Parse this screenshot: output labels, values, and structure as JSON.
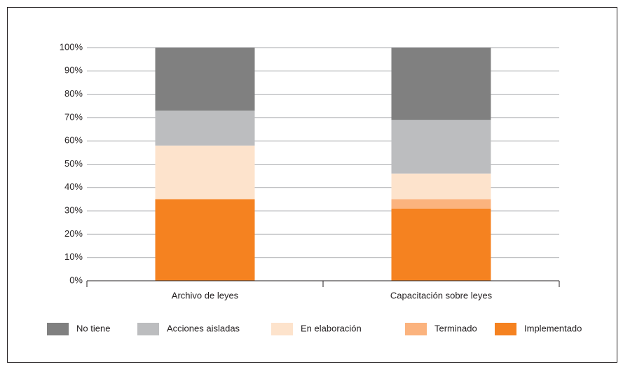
{
  "chart_data": {
    "type": "stacked-bar",
    "categories": [
      "Archivo de leyes",
      "Capacitación sobre leyes"
    ],
    "series": [
      {
        "name": "No tiene",
        "color": "#808080",
        "values": [
          27,
          31
        ]
      },
      {
        "name": "Acciones aisladas",
        "color": "#bcbdbf",
        "values": [
          15,
          23
        ]
      },
      {
        "name": "En elaboración",
        "color": "#fde3cc",
        "values": [
          23,
          11
        ]
      },
      {
        "name": "Terminado",
        "color": "#fbb37e",
        "values": [
          0,
          4
        ]
      },
      {
        "name": "Implementado",
        "color": "#f58220",
        "values": [
          35,
          31
        ]
      }
    ],
    "ylim": [
      0,
      100
    ],
    "yticks": [
      {
        "value": 0,
        "label": "0%"
      },
      {
        "value": 10,
        "label": "10%"
      },
      {
        "value": 20,
        "label": "20%"
      },
      {
        "value": 30,
        "label": "30%"
      },
      {
        "value": 40,
        "label": "40%"
      },
      {
        "value": 50,
        "label": "50%"
      },
      {
        "value": 60,
        "label": "60%"
      },
      {
        "value": 70,
        "label": "70%"
      },
      {
        "value": 80,
        "label": "80%"
      },
      {
        "value": 90,
        "label": "90%"
      },
      {
        "value": 100,
        "label": "100%"
      }
    ],
    "grid": true,
    "legend": "bottom"
  }
}
